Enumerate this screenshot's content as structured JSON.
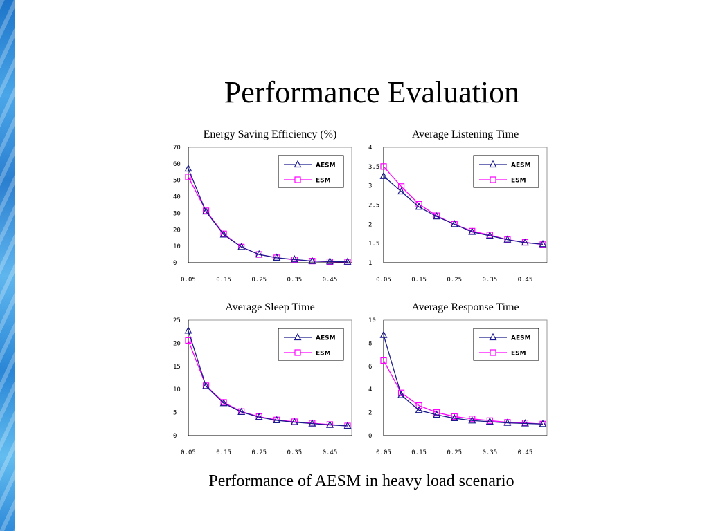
{
  "slide": {
    "title": "Performance Evaluation",
    "caption": "Performance of AESM in heavy load scenario"
  },
  "colors": {
    "aesm": "#1a1a8c",
    "esm": "#ff00ff",
    "strip": "#2b7fd0"
  },
  "chart_data": [
    {
      "type": "line",
      "title": "Energy Saving Efficiency (%)",
      "x": [
        0.05,
        0.1,
        0.15,
        0.2,
        0.25,
        0.3,
        0.35,
        0.4,
        0.45,
        0.5
      ],
      "xticks": [
        "0.05",
        "0.15",
        "0.25",
        "0.35",
        "0.45"
      ],
      "ylim": [
        0,
        70
      ],
      "yticks": [
        "0",
        "10",
        "20",
        "30",
        "40",
        "50",
        "60",
        "70"
      ],
      "legend": "top-right",
      "series": [
        {
          "name": "AESM",
          "marker": "triangle",
          "values": [
            57,
            31,
            17,
            9.5,
            5,
            3,
            2,
            1,
            0.7,
            0.5
          ]
        },
        {
          "name": "ESM",
          "marker": "square",
          "values": [
            52,
            31.5,
            17.5,
            9.5,
            5,
            3,
            1.8,
            1,
            0.6,
            0.4
          ]
        }
      ]
    },
    {
      "type": "line",
      "title": "Average Listening Time",
      "x": [
        0.05,
        0.1,
        0.15,
        0.2,
        0.25,
        0.3,
        0.35,
        0.4,
        0.45,
        0.5
      ],
      "xticks": [
        "0.05",
        "0.15",
        "0.25",
        "0.35",
        "0.45"
      ],
      "ylim": [
        1,
        4
      ],
      "yticks": [
        "1",
        "1.5",
        "2",
        "2.5",
        "3",
        "3.5",
        "4"
      ],
      "legend": "top-right",
      "series": [
        {
          "name": "AESM",
          "marker": "triangle",
          "values": [
            3.25,
            2.85,
            2.45,
            2.2,
            2.0,
            1.8,
            1.7,
            1.6,
            1.52,
            1.48
          ]
        },
        {
          "name": "ESM",
          "marker": "square",
          "values": [
            3.5,
            2.98,
            2.52,
            2.22,
            2.0,
            1.82,
            1.72,
            1.6,
            1.53,
            1.47
          ]
        }
      ]
    },
    {
      "type": "line",
      "title": "Average Sleep Time",
      "x": [
        0.05,
        0.1,
        0.15,
        0.2,
        0.25,
        0.3,
        0.35,
        0.4,
        0.45,
        0.5
      ],
      "xticks": [
        "0.05",
        "0.15",
        "0.25",
        "0.35",
        "0.45"
      ],
      "ylim": [
        0,
        25
      ],
      "yticks": [
        "0",
        "5",
        "10",
        "15",
        "20",
        "25"
      ],
      "legend": "top-right",
      "series": [
        {
          "name": "AESM",
          "marker": "triangle",
          "values": [
            22.7,
            10.7,
            7.0,
            5.1,
            4.0,
            3.3,
            2.9,
            2.6,
            2.3,
            2.1
          ]
        },
        {
          "name": "ESM",
          "marker": "square",
          "values": [
            20.6,
            10.8,
            7.2,
            5.2,
            4.1,
            3.4,
            3.0,
            2.7,
            2.4,
            2.1
          ]
        }
      ]
    },
    {
      "type": "line",
      "title": "Average Response Time",
      "x": [
        0.05,
        0.1,
        0.15,
        0.2,
        0.25,
        0.3,
        0.35,
        0.4,
        0.45,
        0.5
      ],
      "xticks": [
        "0.05",
        "0.15",
        "0.25",
        "0.35",
        "0.45"
      ],
      "ylim": [
        0,
        10
      ],
      "yticks": [
        "0",
        "2",
        "4",
        "6",
        "8",
        "10"
      ],
      "legend": "top-right",
      "series": [
        {
          "name": "AESM",
          "marker": "triangle",
          "values": [
            8.7,
            3.5,
            2.2,
            1.8,
            1.5,
            1.3,
            1.2,
            1.1,
            1.05,
            1.0
          ]
        },
        {
          "name": "ESM",
          "marker": "square",
          "values": [
            6.5,
            3.7,
            2.6,
            2.0,
            1.65,
            1.45,
            1.3,
            1.15,
            1.1,
            1.0
          ]
        }
      ]
    }
  ]
}
